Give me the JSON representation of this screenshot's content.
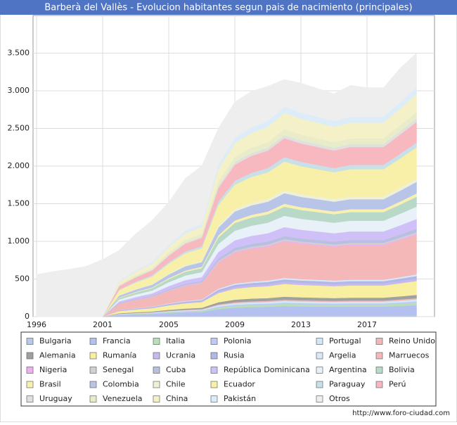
{
  "chart_data": {
    "type": "stacked-area",
    "title": "Barberà del Vallès - Evolucion habitantes segun pais de nacimiento (principales)",
    "source": "http://www.foro-ciudad.com",
    "categories": [
      "1996",
      null,
      null,
      null,
      "2001",
      null,
      null,
      null,
      "2005",
      null,
      null,
      null,
      "2009",
      null,
      null,
      null,
      "2013",
      null,
      null,
      null,
      "2017",
      null,
      null,
      null
    ],
    "ylim": [
      0,
      4000
    ],
    "yticks": [
      0,
      500,
      {
        "value": 1000,
        "label": "1.000"
      },
      {
        "value": 1500,
        "label": "1.500"
      },
      {
        "value": 2000,
        "label": "2.000"
      },
      {
        "value": 2500,
        "label": "2.500"
      },
      {
        "value": 3000,
        "label": "3.000"
      },
      {
        "value": 3500,
        "label": "3.500"
      }
    ],
    "grid": true,
    "series": [
      {
        "name": "Bulgaria",
        "color": "#b8c8e8",
        "values": [
          0,
          0,
          0,
          0,
          0,
          3,
          4,
          5,
          7,
          8,
          9,
          14,
          17,
          18,
          19,
          20,
          19,
          19,
          19,
          19,
          19,
          19,
          20,
          22
        ]
      },
      {
        "name": "Francia",
        "color": "#b4c0f0",
        "values": [
          0,
          0,
          0,
          0,
          0,
          20,
          26,
          31,
          41,
          49,
          53,
          86,
          102,
          108,
          112,
          120,
          116,
          114,
          112,
          114,
          114,
          114,
          122,
          131
        ]
      },
      {
        "name": "Italia",
        "color": "#b8e0b8",
        "values": [
          0,
          0,
          0,
          0,
          0,
          5,
          7,
          8,
          10,
          12,
          13,
          22,
          26,
          27,
          28,
          30,
          29,
          29,
          28,
          29,
          29,
          29,
          31,
          33
        ]
      },
      {
        "name": "Polonia",
        "color": "#c0c8f8",
        "values": [
          0,
          0,
          0,
          0,
          0,
          3,
          3,
          4,
          5,
          6,
          7,
          11,
          13,
          14,
          14,
          15,
          15,
          14,
          14,
          14,
          14,
          14,
          15,
          16
        ]
      },
      {
        "name": "Portugal",
        "color": "#d0e8f8",
        "values": [
          0,
          0,
          0,
          0,
          0,
          4,
          6,
          7,
          9,
          10,
          11,
          18,
          21,
          23,
          23,
          25,
          24,
          24,
          23,
          24,
          24,
          24,
          26,
          27
        ]
      },
      {
        "name": "Reino Unido",
        "color": "#f0b8b8",
        "values": [
          0,
          0,
          0,
          0,
          0,
          3,
          3,
          4,
          5,
          6,
          7,
          11,
          13,
          14,
          14,
          15,
          15,
          14,
          14,
          14,
          14,
          14,
          15,
          16
        ]
      },
      {
        "name": "Alemania",
        "color": "#a0a0a0",
        "values": [
          0,
          0,
          0,
          0,
          0,
          7,
          9,
          10,
          14,
          16,
          18,
          29,
          34,
          36,
          37,
          40,
          39,
          38,
          37,
          38,
          38,
          38,
          41,
          44
        ]
      },
      {
        "name": "Rumanía",
        "color": "#f8f0a0",
        "values": [
          0,
          0,
          0,
          0,
          0,
          29,
          37,
          44,
          58,
          70,
          75,
          122,
          145,
          153,
          158,
          170,
          165,
          162,
          158,
          162,
          162,
          162,
          173,
          185
        ]
      },
      {
        "name": "Ucrania",
        "color": "#c8b8f0",
        "values": [
          0,
          0,
          0,
          0,
          0,
          5,
          7,
          8,
          10,
          12,
          13,
          22,
          26,
          27,
          28,
          30,
          29,
          29,
          28,
          29,
          29,
          29,
          31,
          33
        ]
      },
      {
        "name": "Rusia",
        "color": "#b0b8e8",
        "values": [
          0,
          0,
          0,
          0,
          0,
          5,
          7,
          8,
          10,
          12,
          13,
          22,
          26,
          27,
          28,
          30,
          29,
          29,
          28,
          29,
          29,
          29,
          31,
          33
        ]
      },
      {
        "name": "Argelia",
        "color": "#d8e8f8",
        "values": [
          0,
          0,
          0,
          0,
          0,
          3,
          4,
          5,
          7,
          8,
          9,
          14,
          17,
          18,
          19,
          20,
          19,
          19,
          19,
          19,
          19,
          19,
          20,
          22
        ]
      },
      {
        "name": "Marruecos",
        "color": "#f4b8b8",
        "values": [
          0,
          0,
          0,
          0,
          0,
          82,
          106,
          125,
          163,
          197,
          211,
          346,
          408,
          432,
          446,
          480,
          466,
          456,
          446,
          456,
          456,
          456,
          490,
          523
        ]
      },
      {
        "name": "Nigeria",
        "color": "#f0b0f0",
        "values": [
          0,
          0,
          0,
          0,
          0,
          3,
          3,
          4,
          5,
          6,
          7,
          11,
          13,
          14,
          14,
          15,
          15,
          14,
          14,
          14,
          14,
          14,
          15,
          16
        ]
      },
      {
        "name": "Senegal",
        "color": "#d0d0d0",
        "values": [
          0,
          0,
          0,
          0,
          0,
          3,
          4,
          5,
          7,
          8,
          9,
          14,
          17,
          18,
          19,
          20,
          19,
          19,
          19,
          19,
          19,
          19,
          20,
          22
        ]
      },
      {
        "name": "Cuba",
        "color": "#b8c0e0",
        "values": [
          0,
          0,
          0,
          0,
          0,
          7,
          9,
          10,
          14,
          16,
          18,
          29,
          34,
          36,
          37,
          40,
          39,
          38,
          37,
          38,
          38,
          38,
          41,
          44
        ]
      },
      {
        "name": "República Dominicana",
        "color": "#d0c0f8",
        "values": [
          0,
          0,
          0,
          0,
          0,
          20,
          26,
          31,
          41,
          49,
          53,
          86,
          102,
          108,
          112,
          120,
          116,
          114,
          112,
          114,
          114,
          114,
          122,
          131
        ]
      },
      {
        "name": "Argentina",
        "color": "#e8f0f8",
        "values": [
          0,
          0,
          0,
          0,
          0,
          26,
          33,
          39,
          51,
          62,
          66,
          108,
          128,
          135,
          140,
          150,
          146,
          143,
          140,
          143,
          143,
          143,
          153,
          164
        ]
      },
      {
        "name": "Bolivia",
        "color": "#b8d8c8",
        "values": [
          0,
          0,
          0,
          0,
          0,
          20,
          26,
          31,
          41,
          49,
          53,
          86,
          102,
          108,
          112,
          120,
          116,
          114,
          112,
          114,
          114,
          114,
          122,
          131
        ]
      },
      {
        "name": "Brasil",
        "color": "#f8f0b0",
        "values": [
          0,
          0,
          0,
          0,
          0,
          7,
          9,
          10,
          14,
          16,
          18,
          29,
          34,
          36,
          37,
          40,
          39,
          38,
          37,
          38,
          38,
          38,
          41,
          44
        ]
      },
      {
        "name": "Colombia",
        "color": "#b8c4e8",
        "values": [
          0,
          0,
          0,
          0,
          0,
          24,
          31,
          36,
          48,
          57,
          62,
          101,
          119,
          126,
          130,
          140,
          136,
          133,
          130,
          133,
          133,
          133,
          143,
          153
        ]
      },
      {
        "name": "Chile",
        "color": "#eef0d8",
        "values": [
          0,
          0,
          0,
          0,
          0,
          7,
          9,
          10,
          14,
          16,
          18,
          29,
          34,
          36,
          37,
          40,
          39,
          38,
          37,
          38,
          38,
          38,
          41,
          44
        ]
      },
      {
        "name": "Ecuador",
        "color": "#f8f0a8",
        "values": [
          0,
          0,
          0,
          0,
          0,
          65,
          84,
          99,
          129,
          156,
          167,
          274,
          323,
          342,
          353,
          380,
          369,
          361,
          353,
          361,
          361,
          361,
          388,
          414
        ]
      },
      {
        "name": "Paraguay",
        "color": "#c8e0e8",
        "values": [
          0,
          0,
          0,
          0,
          0,
          10,
          13,
          16,
          20,
          25,
          26,
          43,
          51,
          54,
          56,
          60,
          58,
          57,
          56,
          57,
          57,
          57,
          61,
          65
        ]
      },
      {
        "name": "Perú",
        "color": "#f8b8c0",
        "values": [
          0,
          0,
          0,
          0,
          0,
          43,
          55,
          65,
          85,
          103,
          110,
          180,
          213,
          225,
          233,
          250,
          243,
          238,
          233,
          238,
          238,
          238,
          255,
          273
        ]
      },
      {
        "name": "Uruguay",
        "color": "#e0e0e0",
        "values": [
          0,
          0,
          0,
          0,
          0,
          7,
          9,
          10,
          14,
          16,
          18,
          29,
          34,
          36,
          37,
          40,
          39,
          38,
          37,
          38,
          38,
          38,
          41,
          44
        ]
      },
      {
        "name": "Venezuela",
        "color": "#e8ecc8",
        "values": [
          0,
          0,
          0,
          0,
          0,
          14,
          18,
          21,
          27,
          33,
          35,
          58,
          68,
          72,
          74,
          80,
          78,
          76,
          74,
          76,
          76,
          76,
          82,
          87
        ]
      },
      {
        "name": "China",
        "color": "#f4f0c8",
        "values": [
          0,
          0,
          0,
          0,
          0,
          37,
          48,
          57,
          75,
          90,
          97,
          158,
          187,
          198,
          205,
          220,
          213,
          209,
          205,
          209,
          209,
          209,
          224,
          240
        ]
      },
      {
        "name": "Pakistán",
        "color": "#dcecf8",
        "values": [
          0,
          0,
          0,
          0,
          0,
          14,
          18,
          21,
          27,
          33,
          35,
          58,
          68,
          72,
          74,
          80,
          78,
          76,
          74,
          76,
          76,
          76,
          82,
          87
        ]
      },
      {
        "name": "Otros",
        "color": "#eeeeee",
        "values": [
          560,
          600,
          630,
          670,
          760,
          406,
          486,
          555,
          571,
          696,
          772,
          491,
          478,
          479,
          465,
          360,
          394,
          379,
          365,
          419,
          389,
          389,
          454,
          459
        ]
      }
    ]
  }
}
